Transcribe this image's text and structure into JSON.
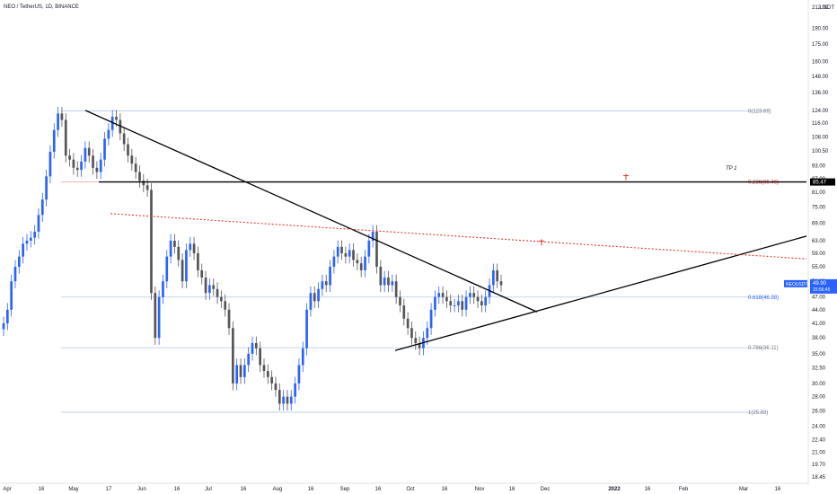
{
  "header": {
    "title": "NEO / TetherUS, 1D, BINANCE"
  },
  "currency_label": "USDT",
  "colors": {
    "up": "#2962ff",
    "down": "#555555",
    "trendline": "#000000",
    "fib_line": "#b2c8e6",
    "red_dotted": "#e53935",
    "tp_line": "#000000",
    "price_tag_bg": "#2962ff",
    "tp_tag_bg": "#000000"
  },
  "chart_data": {
    "type": "candlestick",
    "y_scale": "log",
    "ylim": [
      18,
      212
    ],
    "y_ticks": [
      "212.00",
      "190.00",
      "175.00",
      "160.00",
      "148.00",
      "136.00",
      "124.00",
      "116.00",
      "108.00",
      "100.50",
      "93.00",
      "87.00",
      "81.00",
      "75.00",
      "69.00",
      "63.00",
      "59.00",
      "55.00",
      "51.00",
      "47.00",
      "44.00",
      "41.00",
      "38.00",
      "35.00",
      "32.50",
      "30.00",
      "28.00",
      "26.00",
      "24.00",
      "22.40",
      "21.00",
      "19.70",
      "18.45"
    ],
    "x_ticks": [
      "Apr",
      "16",
      "May",
      "17",
      "Jun",
      "16",
      "Jul",
      "16",
      "Aug",
      "16",
      "Sep",
      "16",
      "Oct",
      "16",
      "Nov",
      "16",
      "Dec",
      "2022",
      "16",
      "Feb",
      "Mar",
      "16"
    ],
    "price_tag": {
      "symbol": "NEOUSDT",
      "price": "49.90",
      "countdown": "15:56:45"
    },
    "tp_tag": "85.47",
    "fib_levels": [
      {
        "label": "0(123.69)",
        "value": 123.69
      },
      {
        "label": "0.236(85.46)",
        "value": 85.46
      },
      {
        "label": "0.618(46.98)",
        "value": 46.98
      },
      {
        "label": "0.786(36.11)",
        "value": 36.11
      },
      {
        "label": "1(25.83)",
        "value": 25.83
      }
    ],
    "tp_line": {
      "label": "TP 1",
      "value": 85.47
    },
    "closes": [
      41,
      44,
      51,
      55,
      58,
      62,
      63,
      64,
      66,
      72,
      78,
      88,
      100,
      112,
      122,
      118,
      98,
      96,
      92,
      91,
      95,
      102,
      98,
      92,
      90,
      96,
      107,
      112,
      120,
      118,
      110,
      104,
      98,
      94,
      90,
      86,
      84,
      82,
      48,
      38,
      47,
      51,
      58,
      63,
      61,
      57,
      51,
      60,
      62,
      59,
      54,
      52,
      48,
      50,
      49,
      47,
      46,
      44,
      40,
      30,
      33,
      31,
      33,
      35,
      37,
      36,
      33,
      32,
      31,
      30,
      29,
      27,
      28,
      27,
      28,
      30,
      33,
      36,
      44,
      48,
      46,
      49,
      51,
      50,
      55,
      58,
      61,
      59,
      58,
      60,
      57,
      56,
      54,
      58,
      63,
      66,
      55,
      50,
      52,
      50,
      51,
      47,
      45,
      42,
      40,
      38,
      37,
      36,
      38,
      40,
      44,
      47,
      48,
      47,
      46,
      45,
      45,
      46,
      44,
      47,
      48,
      47,
      46,
      45,
      47,
      50,
      54,
      51,
      50
    ]
  },
  "annotations": {
    "tp_label": "TP 1"
  }
}
